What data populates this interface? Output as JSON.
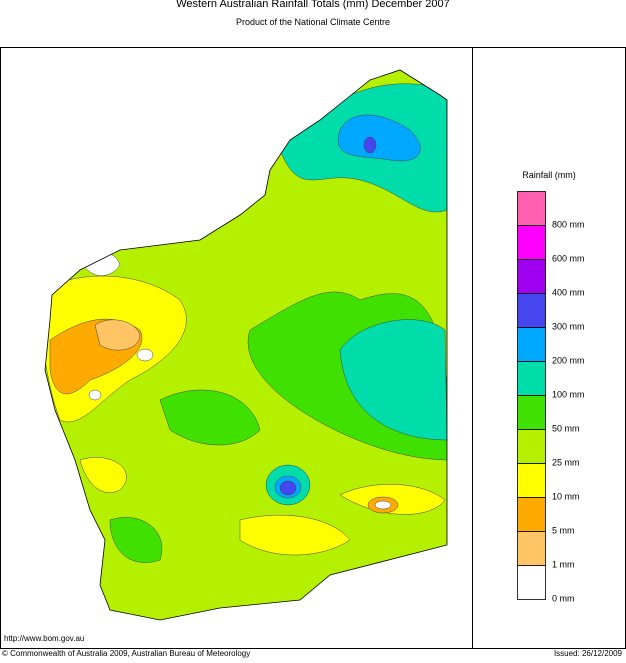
{
  "header": {
    "title": "Western Australian Rainfall Totals (mm) December 2007",
    "subtitle": "Product of the National Climate Centre"
  },
  "legend": {
    "title": "Rainfall (mm)",
    "items": [
      {
        "label": "800 mm",
        "color": "#ff5fae"
      },
      {
        "label": "600 mm",
        "color": "#ff00ff"
      },
      {
        "label": "400 mm",
        "color": "#a000f0"
      },
      {
        "label": "300 mm",
        "color": "#4646f0"
      },
      {
        "label": "200 mm",
        "color": "#00a8ff"
      },
      {
        "label": "100 mm",
        "color": "#00dcaa"
      },
      {
        "label": "50 mm",
        "color": "#40e000"
      },
      {
        "label": "25 mm",
        "color": "#b4f000"
      },
      {
        "label": "10 mm",
        "color": "#ffff00"
      },
      {
        "label": "5 mm",
        "color": "#ffaa00"
      },
      {
        "label": "1 mm",
        "color": "#ffc464"
      },
      {
        "label": "0 mm",
        "color": "#ffffff"
      }
    ]
  },
  "footer": {
    "url": "http://www.bom.gov.au",
    "copyright": "© Commonwealth of Australia 2009, Australian Bureau of Meteorology",
    "issued": "Issued: 26/12/2009"
  }
}
